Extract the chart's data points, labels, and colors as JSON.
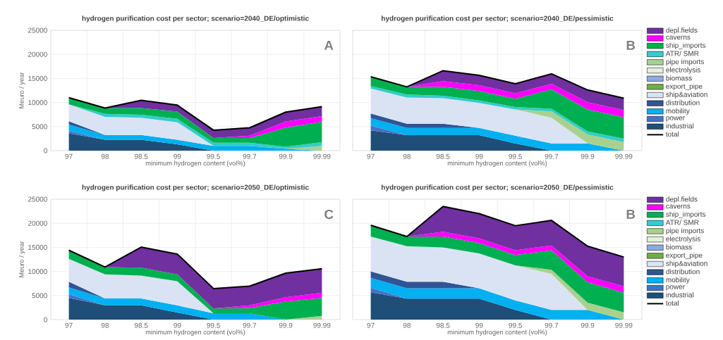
{
  "chart_data": [
    {
      "type": "area",
      "title": "hydrogen purification cost per sector; scenario=2040_DE/optimistic",
      "xlabel": "minimum hydrogen content (vol%)",
      "ylabel": "Meuro / year",
      "annotations": [
        "A"
      ],
      "stacked": true,
      "grid": true,
      "ylim": [
        0,
        25000
      ],
      "yticks": [
        0,
        5000,
        10000,
        15000,
        20000,
        25000
      ],
      "categories": [
        "97",
        "98",
        "98.5",
        "99",
        "99.5",
        "99.7",
        "99.9",
        "99.99"
      ],
      "series": [
        {
          "color": "#1f4e79",
          "values": [
            3600,
            2250,
            2250,
            1300,
            0,
            0,
            0,
            0
          ]
        },
        {
          "color": "#4472c4",
          "values": [
            500,
            0,
            null,
            null,
            null,
            null,
            null,
            null
          ]
        },
        {
          "color": "#00b0f0",
          "values": [
            1300,
            1000,
            1000,
            950,
            1000,
            1000,
            350,
            0
          ]
        },
        {
          "color": "#2f5597",
          "values": [
            700,
            0,
            null,
            null,
            null,
            null,
            null,
            null
          ]
        },
        {
          "color": "#dae3f3",
          "values": [
            3500,
            3750,
            3600,
            3650,
            0,
            null,
            null,
            null
          ]
        },
        {
          "color": "#a9d18e",
          "values": [
            null,
            null,
            null,
            null,
            null,
            null,
            0,
            1000
          ]
        },
        {
          "color": "#33cccc",
          "values": [
            0,
            650,
            600,
            700,
            650,
            650,
            450,
            750
          ]
        },
        {
          "color": "#00b050",
          "values": [
            1400,
            1200,
            1400,
            1500,
            1000,
            1000,
            4000,
            4250
          ]
        },
        {
          "color": "#ff00ff",
          "values": [
            null,
            null,
            null,
            null,
            0,
            450,
            1250,
            1150
          ]
        },
        {
          "color": "#7030a0",
          "values": [
            null,
            0,
            1600,
            1350,
            1600,
            1650,
            1950,
            2000
          ]
        },
        {
          "type": "line",
          "color": "#000000",
          "values": [
            11000,
            8850,
            10450,
            9450,
            4250,
            4750,
            8000,
            9150
          ]
        }
      ]
    },
    {
      "type": "area",
      "title": "hydrogen purification cost per sector; scenario=2040_DE/pessimistic",
      "xlabel": "minimum hydrogen content (vol%)",
      "annotations": [
        "B"
      ],
      "stacked": true,
      "grid": true,
      "legend": "right",
      "tick_labels": "x",
      "ylim": [
        0,
        25000
      ],
      "yticks": [
        0,
        5000,
        10000,
        15000,
        20000,
        25000
      ],
      "categories": [
        "97",
        "98",
        "98.5",
        "99",
        "99.5",
        "99.7",
        "99.9",
        "99.99"
      ],
      "series": [
        {
          "name": "industrial",
          "color": "#1f4e79",
          "values": [
            4200,
            3200,
            3200,
            3200,
            1500,
            0,
            0,
            0
          ]
        },
        {
          "name": "power",
          "color": "#4472c4",
          "values": [
            1000,
            0,
            null,
            null,
            null,
            null,
            null,
            null
          ]
        },
        {
          "name": "mobility",
          "color": "#00b0f0",
          "values": [
            1550,
            1500,
            1500,
            1500,
            1600,
            1500,
            1500,
            0
          ]
        },
        {
          "name": "distribution",
          "color": "#2f5597",
          "values": [
            950,
            900,
            900,
            0,
            null,
            null,
            null,
            null
          ]
        },
        {
          "name": "ship&aviation",
          "color": "#dae3f3",
          "values": [
            5200,
            5450,
            5300,
            5200,
            5450,
            5350,
            0,
            null
          ]
        },
        {
          "name": "export_pipe",
          "color": "#70ad47",
          "values": [
            null,
            null,
            null,
            null,
            null,
            null,
            null,
            null
          ]
        },
        {
          "name": "biomass",
          "color": "#8faadc",
          "values": [
            null,
            null,
            null,
            null,
            null,
            null,
            null,
            null
          ]
        },
        {
          "name": "electrolysis",
          "color": "#e2f0d9",
          "values": [
            null,
            null,
            null,
            null,
            null,
            null,
            null,
            null
          ]
        },
        {
          "name": "pipe imports",
          "color": "#a9d18e",
          "values": [
            null,
            null,
            null,
            null,
            0,
            1300,
            1850,
            1750
          ]
        },
        {
          "name": "ATR/ SMR",
          "color": "#33cccc",
          "values": [
            500,
            600,
            500,
            500,
            500,
            550,
            650,
            750
          ]
        },
        {
          "name": "ship_imports",
          "color": "#00b050",
          "values": [
            1950,
            1600,
            1850,
            2000,
            1750,
            4050,
            4550,
            4450
          ]
        },
        {
          "name": "caverns",
          "color": "#ff00ff",
          "values": [
            null,
            0,
            1200,
            1200,
            1100,
            1150,
            1500,
            1500
          ]
        },
        {
          "name": "depl.fields",
          "color": "#7030a0",
          "values": [
            null,
            0,
            2150,
            2050,
            2000,
            2050,
            2550,
            2450
          ]
        },
        {
          "name": "total",
          "type": "line",
          "color": "#000000",
          "values": [
            15350,
            13250,
            16600,
            15650,
            13900,
            15950,
            12600,
            10900
          ]
        }
      ]
    },
    {
      "type": "area",
      "title": "hydrogen purification cost per sector; scenario=2050_DE/optimistic",
      "xlabel": "minimum hydrogen content (vol%)",
      "ylabel": "Meuro / year",
      "annotations": [
        "C"
      ],
      "stacked": true,
      "grid": true,
      "ylim": [
        0,
        25000
      ],
      "yticks": [
        0,
        5000,
        10000,
        15000,
        20000,
        25000
      ],
      "categories": [
        "97",
        "98",
        "98.5",
        "99",
        "99.5",
        "99.7",
        "99.9",
        "99.99"
      ],
      "series": [
        {
          "color": "#1f4e79",
          "values": [
            4500,
            2950,
            2950,
            1450,
            0,
            0,
            0,
            0
          ]
        },
        {
          "color": "#4472c4",
          "values": [
            750,
            0,
            null,
            null,
            null,
            null,
            null,
            null
          ]
        },
        {
          "color": "#00b0f0",
          "values": [
            1450,
            1450,
            1450,
            1500,
            1300,
            1300,
            0,
            null
          ]
        },
        {
          "color": "#2f5597",
          "values": [
            1150,
            0,
            null,
            null,
            null,
            null,
            null,
            null
          ]
        },
        {
          "color": "#dae3f3",
          "values": [
            4750,
            5000,
            4750,
            5000,
            0,
            null,
            null,
            null
          ]
        },
        {
          "color": "#a9d18e",
          "values": [
            null,
            null,
            null,
            null,
            null,
            null,
            0,
            750
          ]
        },
        {
          "color": "#00b050",
          "values": [
            1800,
            1500,
            1650,
            1450,
            1000,
            1100,
            3750,
            3750
          ]
        },
        {
          "color": "#ff00ff",
          "values": [
            null,
            null,
            null,
            null,
            0,
            550,
            900,
            1100
          ]
        },
        {
          "color": "#7030a0",
          "values": [
            null,
            0,
            4250,
            4200,
            4150,
            4000,
            5000,
            4950
          ]
        },
        {
          "type": "line",
          "color": "#000000",
          "values": [
            14400,
            10900,
            15050,
            13600,
            6450,
            6950,
            9650,
            10550
          ]
        }
      ]
    },
    {
      "type": "area",
      "title": "hydrogen purification cost per sector; scenario=2050_DE/pessimistic",
      "xlabel": "minimum hydrogen content (vol%)",
      "annotations": [
        "B"
      ],
      "stacked": true,
      "grid": true,
      "legend": "right",
      "tick_labels": "x",
      "ylim": [
        0,
        25000
      ],
      "yticks": [
        0,
        5000,
        10000,
        15000,
        20000,
        25000
      ],
      "categories": [
        "97",
        "98",
        "98.5",
        "99",
        "99.5",
        "99.7",
        "99.9",
        "99.99"
      ],
      "series": [
        {
          "name": "industrial",
          "color": "#1f4e79",
          "values": [
            5650,
            4350,
            4350,
            4350,
            2000,
            0,
            0,
            0
          ]
        },
        {
          "name": "power",
          "color": "#4472c4",
          "values": [
            950,
            0,
            null,
            null,
            null,
            null,
            null,
            null
          ]
        },
        {
          "name": "mobility",
          "color": "#00b0f0",
          "values": [
            2050,
            2150,
            2150,
            2150,
            2000,
            2000,
            2000,
            0
          ]
        },
        {
          "name": "distribution",
          "color": "#2f5597",
          "values": [
            1350,
            1350,
            1350,
            0,
            null,
            null,
            null,
            null
          ]
        },
        {
          "name": "ship&aviation",
          "color": "#dae3f3",
          "values": [
            7250,
            7400,
            7150,
            7250,
            7250,
            7500,
            0,
            null
          ]
        },
        {
          "name": "export_pipe",
          "color": "#70ad47",
          "values": [
            null,
            null,
            null,
            null,
            null,
            null,
            null,
            null
          ]
        },
        {
          "name": "biomass",
          "color": "#8faadc",
          "values": [
            null,
            null,
            null,
            null,
            null,
            null,
            null,
            null
          ]
        },
        {
          "name": "electrolysis",
          "color": "#e2f0d9",
          "values": [
            null,
            null,
            null,
            null,
            null,
            null,
            null,
            null
          ]
        },
        {
          "name": "pipe imports",
          "color": "#a9d18e",
          "values": [
            null,
            null,
            null,
            null,
            0,
            850,
            1500,
            1500
          ]
        },
        {
          "name": "ATR/ SMR",
          "color": "#33cccc",
          "values": [
            null,
            null,
            null,
            null,
            null,
            null,
            null,
            null
          ]
        },
        {
          "name": "ship_imports",
          "color": "#00b050",
          "values": [
            2350,
            2000,
            2250,
            2150,
            2150,
            4050,
            4250,
            4100
          ]
        },
        {
          "name": "caverns",
          "color": "#ff00ff",
          "values": [
            null,
            0,
            1000,
            1000,
            1000,
            1000,
            1250,
            1300
          ]
        },
        {
          "name": "depl.fields",
          "color": "#7030a0",
          "values": [
            null,
            0,
            5250,
            5100,
            5100,
            5200,
            6250,
            6100
          ]
        },
        {
          "name": "total",
          "type": "line",
          "color": "#000000",
          "values": [
            19600,
            17250,
            23500,
            22000,
            19500,
            20600,
            15250,
            13000
          ]
        }
      ]
    }
  ]
}
